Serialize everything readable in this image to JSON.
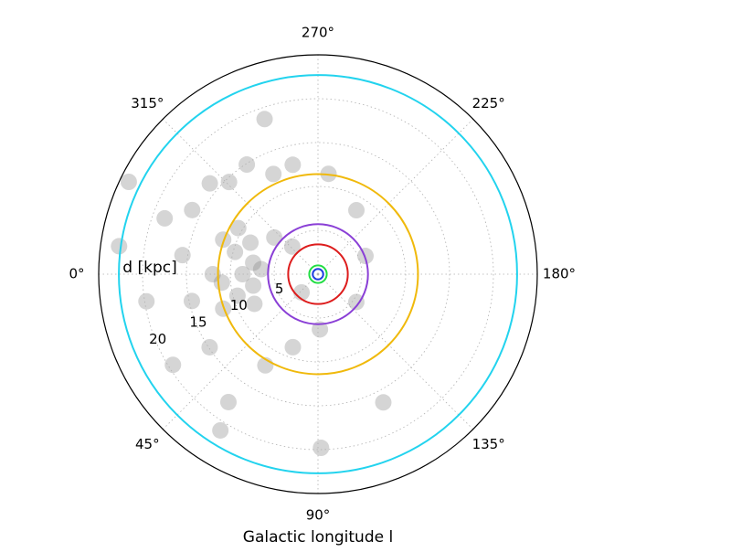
{
  "chart_data": {
    "type": "polar",
    "xlabel": "Galactic longitude l",
    "ylabel": "d [kpc]",
    "rlim": [
      0,
      25
    ],
    "rticks": [
      5,
      10,
      15,
      20
    ],
    "thetaticks": [
      {
        "value": 0,
        "label": "0°"
      },
      {
        "value": 45,
        "label": "45°"
      },
      {
        "value": 90,
        "label": "90°"
      },
      {
        "value": 135,
        "label": "135°"
      },
      {
        "value": 180,
        "label": "180°"
      },
      {
        "value": 225,
        "label": "225°"
      },
      {
        "value": 270,
        "label": "270°"
      },
      {
        "value": 315,
        "label": "315°"
      }
    ],
    "grid": true,
    "scatter": {
      "color": "#888888",
      "l": [
        0,
        10,
        350,
        15,
        345,
        5,
        355,
        25,
        335,
        20,
        340,
        0,
        303,
        320,
        340,
        9,
        32,
        55,
        283,
        264,
        239,
        201,
        144,
        92,
        71,
        60,
        34,
        12,
        352,
        333,
        314,
        294,
        330,
        320,
        313,
        48,
        58,
        91,
        117,
        352,
        334,
        289
      ],
      "d": [
        8.6,
        7.5,
        7.5,
        9.5,
        9.8,
        11,
        6.5,
        8,
        8.5,
        11.5,
        11.5,
        12,
        14.9,
        16.1,
        18.6,
        19.8,
        19.5,
        17.8,
        12.8,
        11.5,
        8.5,
        5.8,
        5.4,
        6.3,
        8.8,
        12,
        14.9,
        14.7,
        15.6,
        16.1,
        14.6,
        12.5,
        10.5,
        6.5,
        4.3,
        2.8,
        21,
        19.8,
        16.4,
        22.9,
        24,
        18.7
      ]
    },
    "circles": [
      {
        "color": "#22d3ee",
        "radius": 22.7
      },
      {
        "color": "#f0b90b",
        "radius": 11.4
      },
      {
        "color": "#8a3fd6",
        "radius": 5.7
      },
      {
        "color": "#dd1c1c",
        "radius": 3.4
      },
      {
        "color": "#22dd44",
        "radius": 1.0
      },
      {
        "color": "#1f3fe0",
        "radius": 0.6
      }
    ]
  }
}
